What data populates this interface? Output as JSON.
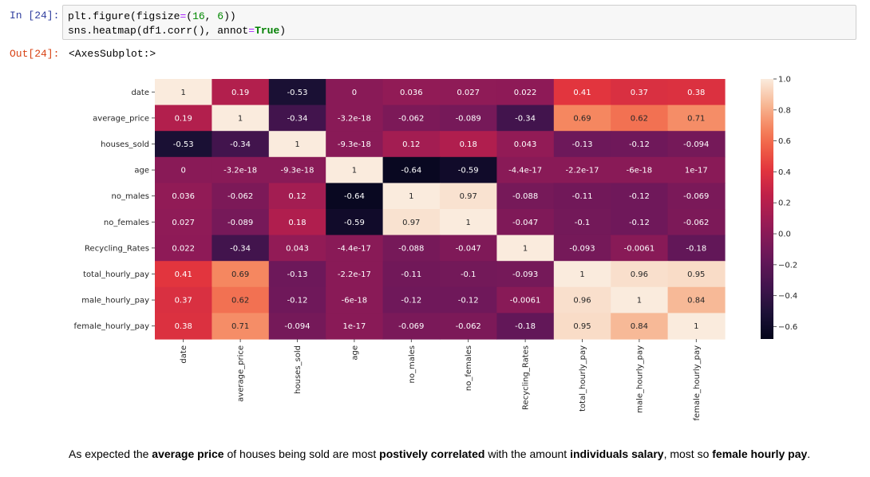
{
  "cell_in": {
    "prompt": "In [24]:",
    "code_lines": [
      [
        "plt.figure(figsize",
        "=",
        "(",
        "16",
        ", ",
        "6",
        "))"
      ],
      [
        "sns.heatmap(df1.corr(), annot",
        "=",
        "True",
        ")"
      ]
    ]
  },
  "cell_out": {
    "prompt": "Out[24]:",
    "repr": "<AxesSubplot:>"
  },
  "chart_data": {
    "type": "heatmap",
    "title": "",
    "xlabel": "",
    "ylabel": "",
    "categories": [
      "date",
      "average_price",
      "houses_sold",
      "age",
      "no_males",
      "no_females",
      "Recycling_Rates",
      "total_hourly_pay",
      "male_hourly_pay",
      "female_hourly_pay"
    ],
    "values": [
      [
        1,
        0.19,
        -0.53,
        0,
        0.036,
        0.027,
        0.022,
        0.41,
        0.37,
        0.38
      ],
      [
        0.19,
        1,
        -0.34,
        -3.2e-18,
        -0.062,
        -0.089,
        -0.34,
        0.69,
        0.62,
        0.71
      ],
      [
        -0.53,
        -0.34,
        1,
        -9.3e-18,
        0.12,
        0.18,
        0.043,
        -0.13,
        -0.12,
        -0.094
      ],
      [
        0,
        -3.2e-18,
        -9.3e-18,
        1,
        -0.64,
        -0.59,
        -4.4e-17,
        -2.2e-17,
        -6e-18,
        1e-17
      ],
      [
        0.036,
        -0.062,
        0.12,
        -0.64,
        1,
        0.97,
        -0.088,
        -0.11,
        -0.12,
        -0.069
      ],
      [
        0.027,
        -0.089,
        0.18,
        -0.59,
        0.97,
        1,
        -0.047,
        -0.1,
        -0.12,
        -0.062
      ],
      [
        0.022,
        -0.34,
        0.043,
        -4.4e-17,
        -0.088,
        -0.047,
        1,
        -0.093,
        -0.0061,
        -0.18
      ],
      [
        0.41,
        0.69,
        -0.13,
        -2.2e-17,
        -0.11,
        -0.1,
        -0.093,
        1,
        0.96,
        0.95
      ],
      [
        0.37,
        0.62,
        -0.12,
        -6e-18,
        -0.12,
        -0.12,
        -0.0061,
        0.96,
        1,
        0.84
      ],
      [
        0.38,
        0.71,
        -0.094,
        1e-17,
        -0.069,
        -0.062,
        -0.18,
        0.95,
        0.84,
        1
      ]
    ],
    "annotations": [
      [
        "1",
        "0.19",
        "-0.53",
        "0",
        "0.036",
        "0.027",
        "0.022",
        "0.41",
        "0.37",
        "0.38"
      ],
      [
        "0.19",
        "1",
        "-0.34",
        "-3.2e-18",
        "-0.062",
        "-0.089",
        "-0.34",
        "0.69",
        "0.62",
        "0.71"
      ],
      [
        "-0.53",
        "-0.34",
        "1",
        "-9.3e-18",
        "0.12",
        "0.18",
        "0.043",
        "-0.13",
        "-0.12",
        "-0.094"
      ],
      [
        "0",
        "-3.2e-18",
        "-9.3e-18",
        "1",
        "-0.64",
        "-0.59",
        "-4.4e-17",
        "-2.2e-17",
        "-6e-18",
        "1e-17"
      ],
      [
        "0.036",
        "-0.062",
        "0.12",
        "-0.64",
        "1",
        "0.97",
        "-0.088",
        "-0.11",
        "-0.12",
        "-0.069"
      ],
      [
        "0.027",
        "-0.089",
        "0.18",
        "-0.59",
        "0.97",
        "1",
        "-0.047",
        "-0.1",
        "-0.12",
        "-0.062"
      ],
      [
        "0.022",
        "-0.34",
        "0.043",
        "-4.4e-17",
        "-0.088",
        "-0.047",
        "1",
        "-0.093",
        "-0.0061",
        "-0.18"
      ],
      [
        "0.41",
        "0.69",
        "-0.13",
        "-2.2e-17",
        "-0.11",
        "-0.1",
        "-0.093",
        "1",
        "0.96",
        "0.95"
      ],
      [
        "0.37",
        "0.62",
        "-0.12",
        "-6e-18",
        "-0.12",
        "-0.12",
        "-0.0061",
        "0.96",
        "1",
        "0.84"
      ],
      [
        "0.38",
        "0.71",
        "-0.094",
        "1e-17",
        "-0.069",
        "-0.062",
        "-0.18",
        "0.95",
        "0.84",
        "1"
      ]
    ],
    "colorbar": {
      "range": [
        -0.68,
        1.0
      ],
      "ticks": [
        1.0,
        0.8,
        0.6,
        0.4,
        0.2,
        0.0,
        -0.2,
        -0.4,
        -0.6
      ],
      "tick_labels": [
        "1.0",
        "0.8",
        "0.6",
        "0.4",
        "0.2",
        "0.0",
        "−0.2",
        "−0.4",
        "−0.6"
      ]
    },
    "colormap": "rocket",
    "grid": false,
    "legend": "colorbar-right"
  },
  "markdown": {
    "segments": [
      {
        "text": "As expected the ",
        "bold": false
      },
      {
        "text": "average price",
        "bold": true
      },
      {
        "text": " of houses being sold are most ",
        "bold": false
      },
      {
        "text": "postively correlated",
        "bold": true
      },
      {
        "text": " with the amount ",
        "bold": false
      },
      {
        "text": "individuals salary",
        "bold": true
      },
      {
        "text": ", most so ",
        "bold": false
      },
      {
        "text": "female hourly pay",
        "bold": true
      },
      {
        "text": ".",
        "bold": false
      }
    ]
  }
}
